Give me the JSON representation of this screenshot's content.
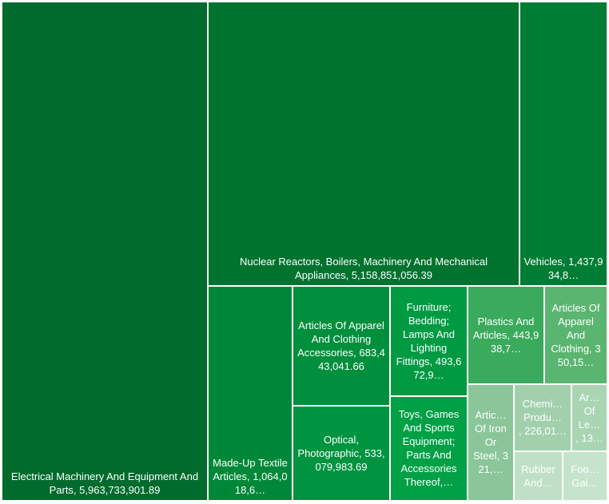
{
  "chart_data": {
    "type": "treemap",
    "categories": [
      "Electrical Machinery And Equipment And Parts",
      "Nuclear Reactors, Boilers, Machinery And Mechanical Appliances",
      "Vehicles",
      "Made-Up Textile Articles",
      "Articles Of Apparel And Clothing Accessories",
      "Optical, Photographic",
      "Furniture; Bedding; Lamps And Lighting Fittings",
      "Toys, Games And Sports Equipment; Parts And Accessories Thereof,…",
      "Plastics And Articles",
      "Articles Of Apparel And Clothing",
      "Artic… Of Iron Or Steel",
      "Chemi… Produ…",
      "Ar… Of Le…",
      "Rubber And…",
      "Foo… Gai…"
    ],
    "values": [
      5963733901.89,
      5158851056.39,
      1437934800,
      1064018600,
      683443041.66,
      533079983.69,
      493672900,
      458000000,
      443938700,
      350150000,
      321000000,
      226010000,
      132000000,
      132000000,
      121000000
    ],
    "value_labels": [
      "5,963,733,901.89",
      "5,158,851,056.39",
      "1,437,934,8…",
      "1,064,018,6…",
      "683,443,041.66",
      "533,079,983.69",
      "493,672,9…",
      null,
      "443,938,7…",
      "350,15…",
      "321,…",
      "226,01…",
      "13…",
      null,
      null
    ],
    "colors": [
      "#006b2d",
      "#00732f",
      "#007d34",
      "#008838",
      "#008f3c",
      "#009340",
      "#009a43",
      "#00a046",
      "#3aaa5d",
      "#5ab570",
      "#8ac69a",
      "#a2d0ad",
      "#a9d5b3",
      "#bfe0c6",
      "#c6e4cc"
    ]
  }
}
